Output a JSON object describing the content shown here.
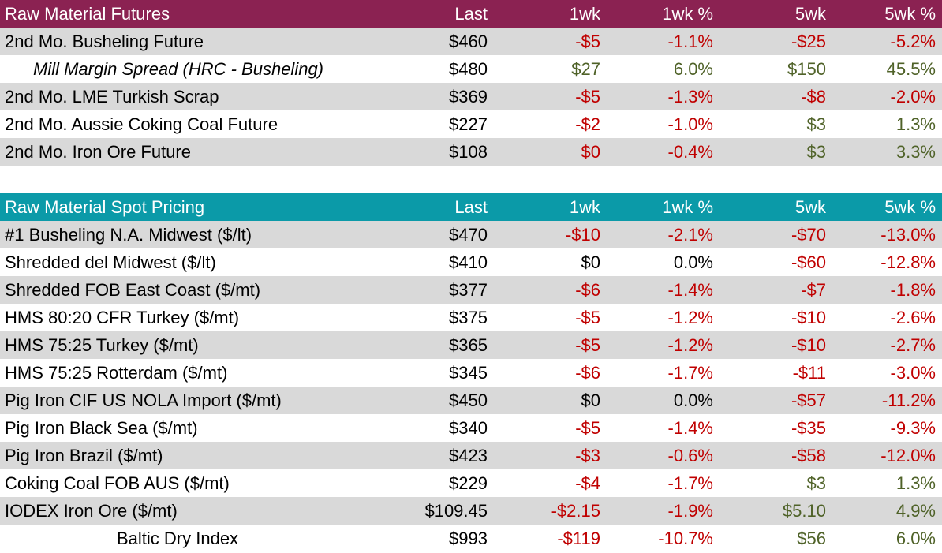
{
  "colors": {
    "futures_header": "#8b2252",
    "spot_header": "#0b9aa8",
    "negative": "#c00000",
    "positive": "#4f6228",
    "alt_row": "#d9d9d9"
  },
  "futures": {
    "header": {
      "name": "Raw Material Futures",
      "last": "Last",
      "w1": "1wk",
      "w1p": "1wk %",
      "w5": "5wk",
      "w5p": "5wk %"
    },
    "rows": [
      {
        "name": "2nd Mo. Busheling Future",
        "last": "$460",
        "w1": "-$5",
        "w1p": "-1.1%",
        "w5": "-$25",
        "w5p": "-5.2%",
        "style": "normal",
        "s1": "neg",
        "s5": "neg"
      },
      {
        "name": "Mill Margin Spread (HRC - Busheling)",
        "last": "$480",
        "w1": "$27",
        "w1p": "6.0%",
        "w5": "$150",
        "w5p": "45.5%",
        "style": "italic",
        "s1": "pos",
        "s5": "pos"
      },
      {
        "name": "2nd Mo. LME Turkish Scrap",
        "last": "$369",
        "w1": "-$5",
        "w1p": "-1.3%",
        "w5": "-$8",
        "w5p": "-2.0%",
        "style": "normal",
        "s1": "neg",
        "s5": "neg"
      },
      {
        "name": "2nd Mo. Aussie Coking Coal Future",
        "last": "$227",
        "w1": "-$2",
        "w1p": "-1.0%",
        "w5": "$3",
        "w5p": "1.3%",
        "style": "normal",
        "s1": "neg",
        "s5": "pos"
      },
      {
        "name": "2nd Mo. Iron Ore Future",
        "last": "$108",
        "w1": "$0",
        "w1p": "-0.4%",
        "w5": "$3",
        "w5p": "3.3%",
        "style": "normal",
        "s1": "neg",
        "s5": "pos"
      }
    ]
  },
  "spot": {
    "header": {
      "name": "Raw Material Spot Pricing",
      "last": "Last",
      "w1": "1wk",
      "w1p": "1wk %",
      "w5": "5wk",
      "w5p": "5wk %"
    },
    "rows": [
      {
        "name": "#1 Busheling N.A. Midwest ($/lt)",
        "last": "$470",
        "w1": "-$10",
        "w1p": "-2.1%",
        "w5": "-$70",
        "w5p": "-13.0%",
        "style": "normal",
        "s1": "neg",
        "s5": "neg"
      },
      {
        "name": "Shredded del  Midwest ($/lt)",
        "last": "$410",
        "w1": "$0",
        "w1p": "0.0%",
        "w5": "-$60",
        "w5p": "-12.8%",
        "style": "normal",
        "s1": "neu",
        "s5": "neg"
      },
      {
        "name": "Shredded FOB East Coast ($/mt)",
        "last": "$377",
        "w1": "-$6",
        "w1p": "-1.4%",
        "w5": "-$7",
        "w5p": "-1.8%",
        "style": "normal",
        "s1": "neg",
        "s5": "neg"
      },
      {
        "name": "HMS 80:20 CFR Turkey ($/mt)",
        "last": "$375",
        "w1": "-$5",
        "w1p": "-1.2%",
        "w5": "-$10",
        "w5p": "-2.6%",
        "style": "normal",
        "s1": "neg",
        "s5": "neg"
      },
      {
        "name": "HMS 75:25 Turkey ($/mt)",
        "last": "$365",
        "w1": "-$5",
        "w1p": "-1.2%",
        "w5": "-$10",
        "w5p": "-2.7%",
        "style": "normal",
        "s1": "neg",
        "s5": "neg"
      },
      {
        "name": "HMS 75:25 Rotterdam ($/mt)",
        "last": "$345",
        "w1": "-$6",
        "w1p": "-1.7%",
        "w5": "-$11",
        "w5p": "-3.0%",
        "style": "normal",
        "s1": "neg",
        "s5": "neg"
      },
      {
        "name": "Pig Iron CIF US NOLA Import ($/mt)",
        "last": "$450",
        "w1": "$0",
        "w1p": "0.0%",
        "w5": "-$57",
        "w5p": "-11.2%",
        "style": "normal",
        "s1": "neu",
        "s5": "neg"
      },
      {
        "name": "Pig Iron Black Sea ($/mt)",
        "last": "$340",
        "w1": "-$5",
        "w1p": "-1.4%",
        "w5": "-$35",
        "w5p": "-9.3%",
        "style": "normal",
        "s1": "neg",
        "s5": "neg"
      },
      {
        "name": "Pig Iron Brazil ($/mt)",
        "last": "$423",
        "w1": "-$3",
        "w1p": "-0.6%",
        "w5": "-$58",
        "w5p": "-12.0%",
        "style": "normal",
        "s1": "neg",
        "s5": "neg"
      },
      {
        "name": "Coking Coal FOB AUS ($/mt)",
        "last": "$229",
        "w1": "-$4",
        "w1p": "-1.7%",
        "w5": "$3",
        "w5p": "1.3%",
        "style": "normal",
        "s1": "neg",
        "s5": "pos"
      },
      {
        "name": "IODEX  Iron Ore ($/mt)",
        "last": "$109.45",
        "w1": "-$2.15",
        "w1p": "-1.9%",
        "w5": "$5.10",
        "w5p": "4.9%",
        "style": "normal",
        "s1": "neg",
        "s5": "pos"
      },
      {
        "name": "Baltic Dry Index",
        "last": "$993",
        "w1": "-$119",
        "w1p": "-10.7%",
        "w5": "$56",
        "w5p": "6.0%",
        "style": "center",
        "s1": "neg",
        "s5": "pos"
      }
    ]
  }
}
